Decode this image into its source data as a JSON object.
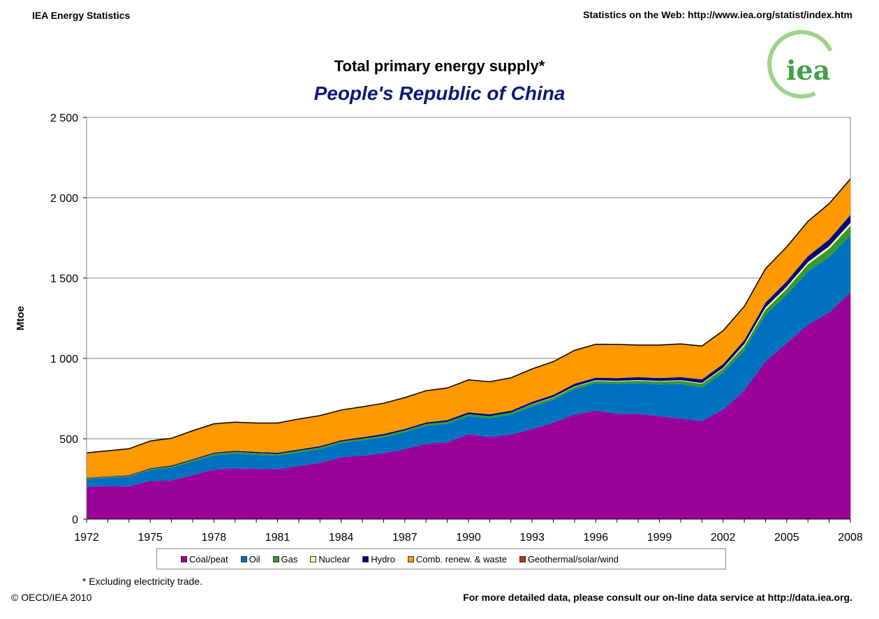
{
  "header": {
    "left": "IEA Energy Statistics",
    "right": "Statistics on the Web: http://www.iea.org/statist/index.htm"
  },
  "logo_text": "iea",
  "footnote": "* Excluding electricity trade.",
  "copyright": "© OECD/IEA 2010",
  "footer_right": "For more detailed data, please consult our on-line data service at http://data.iea.org.",
  "chart_data": {
    "type": "area",
    "stacked": true,
    "title": "Total primary energy supply*",
    "subtitle": "People's Republic of China",
    "xlabel": "",
    "ylabel": "Mtoe",
    "ylim": [
      0,
      2500
    ],
    "yticks": [
      0,
      500,
      1000,
      1500,
      2000,
      2500
    ],
    "ytick_labels": [
      "0",
      "500",
      "1 000",
      "1 500",
      "2 000",
      "2 500"
    ],
    "xticks_labels": [
      "1972",
      "1975",
      "1978",
      "1981",
      "1984",
      "1987",
      "1990",
      "1993",
      "1996",
      "1999",
      "2002",
      "2005",
      "2008"
    ],
    "x": [
      1972,
      1973,
      1974,
      1975,
      1976,
      1977,
      1978,
      1979,
      1980,
      1981,
      1982,
      1983,
      1984,
      1985,
      1986,
      1987,
      1988,
      1989,
      1990,
      1991,
      1992,
      1993,
      1994,
      1995,
      1996,
      1997,
      1998,
      1999,
      2000,
      2001,
      2002,
      2003,
      2004,
      2005,
      2006,
      2007,
      2008
    ],
    "grid": true,
    "series": [
      {
        "name": "Coal/peat",
        "color": "#990099",
        "values": [
          200,
          205,
          203,
          237,
          240,
          275,
          308,
          315,
          312,
          310,
          330,
          350,
          385,
          395,
          410,
          435,
          468,
          478,
          528,
          510,
          525,
          560,
          600,
          650,
          675,
          655,
          655,
          640,
          625,
          610,
          680,
          800,
          980,
          1095,
          1210,
          1285,
          1410
        ]
      },
      {
        "name": "Oil",
        "color": "#0070c0",
        "values": [
          50,
          52,
          60,
          68,
          80,
          83,
          88,
          92,
          88,
          85,
          85,
          85,
          87,
          95,
          98,
          105,
          112,
          115,
          112,
          118,
          125,
          140,
          142,
          158,
          170,
          185,
          190,
          198,
          215,
          210,
          230,
          250,
          290,
          300,
          330,
          345,
          355
        ]
      },
      {
        "name": "Gas",
        "color": "#339933",
        "values": [
          4,
          5,
          6,
          7,
          8,
          9,
          11,
          12,
          11,
          11,
          11,
          11,
          11,
          11,
          12,
          12,
          12,
          13,
          13,
          13,
          13,
          14,
          14,
          15,
          15,
          16,
          16,
          18,
          20,
          22,
          25,
          28,
          33,
          37,
          45,
          52,
          60
        ]
      },
      {
        "name": "Nuclear",
        "color": "#ffff99",
        "values": [
          0,
          0,
          0,
          0,
          0,
          0,
          0,
          0,
          0,
          0,
          0,
          0,
          0,
          0,
          0,
          0,
          0,
          0,
          0,
          0,
          0,
          2,
          3,
          3,
          4,
          4,
          4,
          4,
          4,
          5,
          6,
          11,
          13,
          14,
          14,
          16,
          18
        ]
      },
      {
        "name": "Hydro",
        "color": "#000080",
        "values": [
          3,
          3,
          4,
          4,
          5,
          5,
          6,
          6,
          7,
          7,
          7,
          8,
          8,
          8,
          9,
          9,
          9,
          10,
          11,
          11,
          11,
          13,
          14,
          16,
          16,
          17,
          18,
          18,
          19,
          22,
          23,
          24,
          31,
          34,
          37,
          42,
          50
        ]
      },
      {
        "name": "Comb. renew. & waste",
        "color": "#ff9900",
        "values": [
          155,
          160,
          165,
          170,
          170,
          178,
          180,
          178,
          180,
          185,
          190,
          190,
          188,
          190,
          192,
          195,
          198,
          200,
          202,
          203,
          205,
          206,
          207,
          208,
          208,
          210,
          200,
          205,
          207,
          207,
          207,
          210,
          210,
          212,
          215,
          220,
          220
        ]
      },
      {
        "name": "Geothermal/solar/wind",
        "color": "#cc3300",
        "values": [
          0,
          0,
          0,
          0,
          0,
          0,
          0,
          0,
          0,
          0,
          0,
          0,
          0,
          0,
          0,
          0,
          0,
          0,
          0,
          0,
          0,
          0,
          0,
          0,
          0,
          0,
          0,
          0,
          0,
          1,
          1,
          1,
          1,
          2,
          2,
          3,
          4
        ]
      }
    ]
  }
}
